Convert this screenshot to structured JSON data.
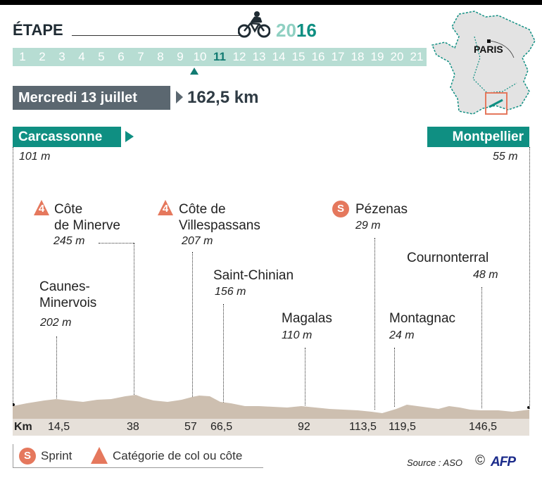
{
  "header": {
    "title": "ÉTAPE",
    "year_prefix": "20",
    "year_suffix": "16",
    "stages": [
      "1",
      "2",
      "3",
      "4",
      "5",
      "6",
      "7",
      "8",
      "9",
      "10",
      "11",
      "12",
      "13",
      "14",
      "15",
      "16",
      "17",
      "18",
      "19",
      "20",
      "21"
    ],
    "active_stage": "11",
    "date": "Mercredi 13 juillet",
    "distance": "162,5 km"
  },
  "map": {
    "city": "PARIS"
  },
  "route": {
    "start": {
      "name": "Carcassonne",
      "altitude": "101 m"
    },
    "finish": {
      "name": "Montpellier",
      "altitude": "55 m"
    },
    "points": [
      {
        "name": "Caunes-\nMinervois",
        "altitude": "202 m",
        "km": "14,5",
        "type": "town"
      },
      {
        "name": "Côte\nde Minerve",
        "altitude": "245 m",
        "km": "38",
        "type": "climb",
        "category": "4"
      },
      {
        "name": "Côte de\nVillespassans",
        "altitude": "207 m",
        "km": "57",
        "type": "climb",
        "category": "4"
      },
      {
        "name": "Saint-Chinian",
        "altitude": "156 m",
        "km": "66,5",
        "type": "town"
      },
      {
        "name": "Magalas",
        "altitude": "110 m",
        "km": "92",
        "type": "town"
      },
      {
        "name": "Pézenas",
        "altitude": "29 m",
        "km": "113,5",
        "type": "sprint",
        "symbol": "S"
      },
      {
        "name": "Montagnac",
        "altitude": "24 m",
        "km": "119,5",
        "type": "town"
      },
      {
        "name": "Cournonterral",
        "altitude": "48 m",
        "km": "146,5",
        "type": "town"
      }
    ]
  },
  "km_axis": {
    "label": "Km"
  },
  "legend": {
    "sprint_symbol": "S",
    "sprint_label": "Sprint",
    "climb_label": "Catégorie de col ou côte"
  },
  "footer": {
    "source": "Source : ASO",
    "copyright": "©",
    "agency": "AFP"
  },
  "colors": {
    "accent": "#0f8f82",
    "stage_bar": "#b7ddd3",
    "date_box": "#5b6770",
    "marker": "#e5785d",
    "profile": "#cdbfb0"
  },
  "icons": [
    "cyclist-icon",
    "france-map-icon",
    "category-triangle-icon",
    "sprint-circle-icon"
  ]
}
